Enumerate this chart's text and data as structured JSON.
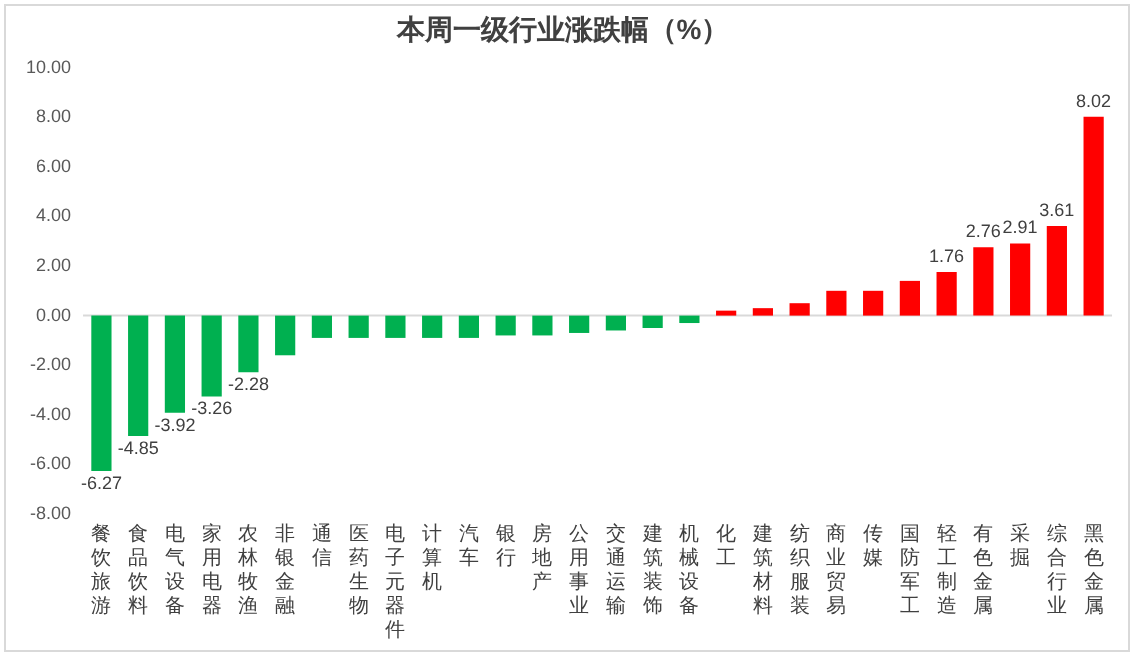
{
  "chart_data": {
    "type": "bar",
    "title": "本周一级行业涨跌幅（%）",
    "categories": [
      "餐饮旅游",
      "食品饮料",
      "电气设备",
      "家用电器",
      "农林牧渔",
      "非银金融",
      "通信",
      "医药生物",
      "电子元器件",
      "计算机",
      "汽车",
      "银行",
      "房地产",
      "公用事业",
      "交通运输",
      "建筑装饰",
      "机械设备",
      "化工",
      "建筑材料",
      "纺织服装",
      "商业贸易",
      "传媒",
      "国防军工",
      "轻工制造",
      "有色金属",
      "采掘",
      "综合行业",
      "黑色金属"
    ],
    "values": [
      -6.27,
      -4.85,
      -3.92,
      -3.26,
      -2.28,
      -1.6,
      -0.9,
      -0.9,
      -0.9,
      -0.9,
      -0.9,
      -0.8,
      -0.8,
      -0.7,
      -0.6,
      -0.5,
      -0.3,
      0.2,
      0.3,
      0.5,
      1.0,
      1.0,
      1.4,
      1.76,
      2.76,
      2.91,
      3.61,
      8.02
    ],
    "value_labels": [
      "-6.27",
      "-4.85",
      "-3.92",
      "-3.26",
      "-2.28",
      null,
      null,
      null,
      null,
      null,
      null,
      null,
      null,
      null,
      null,
      null,
      null,
      null,
      null,
      null,
      null,
      null,
      null,
      "1.76",
      "2.76",
      "2.91",
      "3.61",
      "8.02"
    ],
    "colors": [
      "#00b050",
      "#00b050",
      "#00b050",
      "#00b050",
      "#00b050",
      "#00b050",
      "#00b050",
      "#00b050",
      "#00b050",
      "#00b050",
      "#00b050",
      "#00b050",
      "#00b050",
      "#00b050",
      "#00b050",
      "#00b050",
      "#00b050",
      "#ff0000",
      "#ff0000",
      "#ff0000",
      "#ff0000",
      "#ff0000",
      "#ff0000",
      "#ff0000",
      "#ff0000",
      "#ff0000",
      "#ff0000",
      "#ff0000"
    ],
    "ylim": [
      -8,
      10
    ],
    "yticks": [
      {
        "value": -8,
        "label": "-8.00"
      },
      {
        "value": -6,
        "label": "-6.00"
      },
      {
        "value": -4,
        "label": "-4.00"
      },
      {
        "value": -2,
        "label": "-2.00"
      },
      {
        "value": 0,
        "label": "0.00"
      },
      {
        "value": 2,
        "label": "2.00"
      },
      {
        "value": 4,
        "label": "4.00"
      },
      {
        "value": 6,
        "label": "6.00"
      },
      {
        "value": 8,
        "label": "8.00"
      },
      {
        "value": 10,
        "label": "10.00"
      }
    ],
    "ref_lines": [
      {
        "axis": "y",
        "value": 0,
        "color": "#d9d9d9"
      }
    ],
    "grid": false,
    "legend": false
  }
}
